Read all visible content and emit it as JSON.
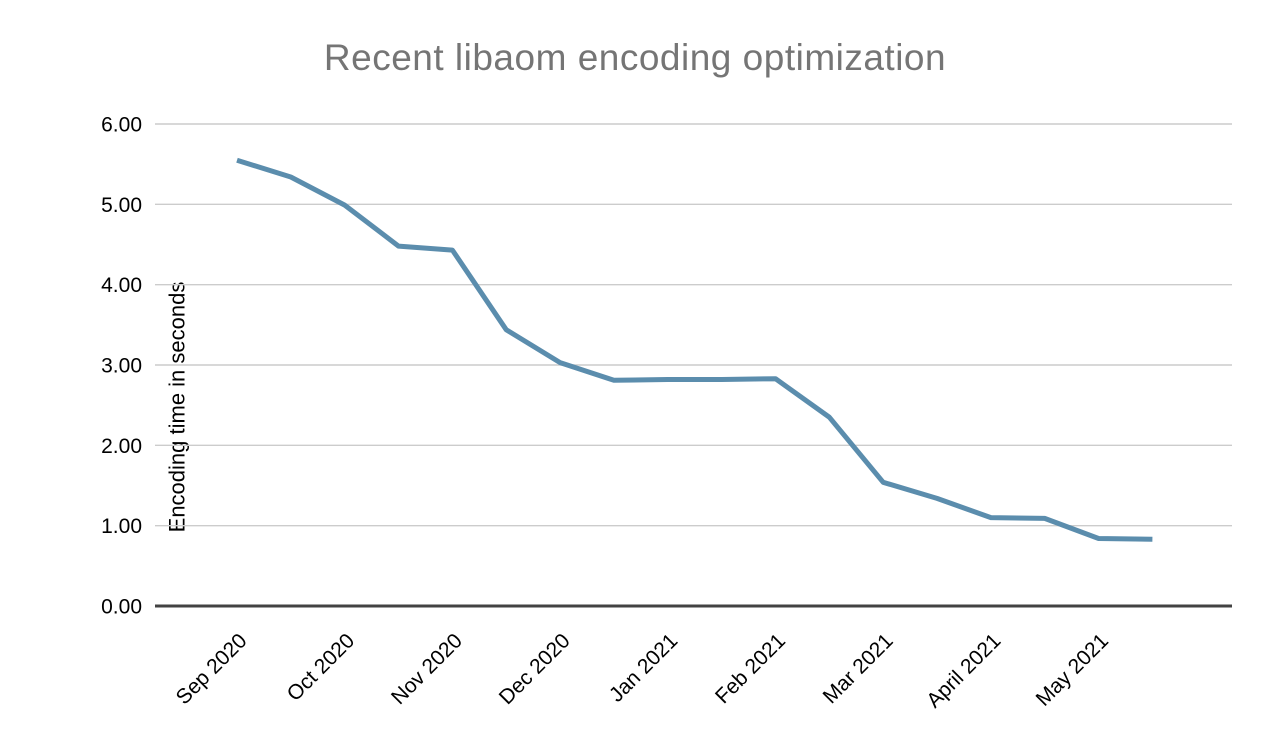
{
  "page": {
    "background": "#ffffff"
  },
  "chart_data": {
    "type": "line",
    "title": "Recent libaom encoding optimization",
    "xlabel": "",
    "ylabel": "Encoding time in seconds",
    "categories": [
      "Sep 2020",
      "Oct 2020",
      "Nov 2020",
      "Dec 2020",
      "Jan 2021",
      "Feb 2021",
      "Mar 2021",
      "April 2021",
      "May 2021"
    ],
    "points_per_category": 2,
    "values": [
      5.55,
      5.34,
      4.99,
      4.48,
      4.43,
      3.44,
      3.03,
      2.81,
      2.82,
      2.82,
      2.83,
      2.35,
      1.54,
      1.34,
      1.1,
      1.09,
      0.84,
      0.83
    ],
    "y_ticks": [
      "0.00",
      "1.00",
      "2.00",
      "3.00",
      "4.00",
      "5.00",
      "6.00"
    ],
    "ylim": [
      0,
      6
    ],
    "grid": "horizontal-only",
    "legend": "none",
    "x_label_rotation_deg": -45,
    "colors": {
      "line": "#5b8dad",
      "title": "#757575",
      "tick_label": "#000000",
      "gridline": "#cccccc",
      "axis_line": "#424242"
    }
  }
}
